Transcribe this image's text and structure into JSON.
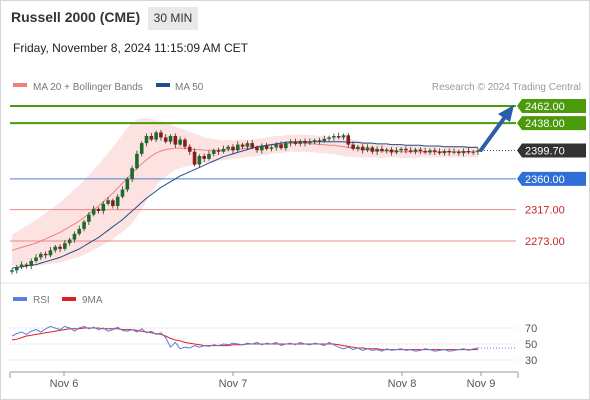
{
  "header": {
    "title": "Russell 2000 (CME)",
    "timeframe": "30 MIN",
    "datetime": "Friday, November 8, 2024 11:15:09 AM CET"
  },
  "legend": {
    "ma20": "MA 20 + Bollinger Bands",
    "ma50": "MA 50",
    "credit": "Research © 2024 Trading Central",
    "ma20_color": "#f08080",
    "ma50_color": "#1f4e8c"
  },
  "levels": [
    {
      "value": 2462.0,
      "label": "2462.00",
      "kind": "resistance",
      "color": "#4a9a0c"
    },
    {
      "value": 2438.0,
      "label": "2438.00",
      "kind": "resistance",
      "color": "#4a9a0c"
    },
    {
      "value": 2399.7,
      "label": "2399.70",
      "kind": "last",
      "color": "#333333"
    },
    {
      "value": 2360.0,
      "label": "2360.00",
      "kind": "pivot",
      "color": "#2f6fd6"
    },
    {
      "value": 2317.0,
      "label": "2317.00",
      "kind": "support",
      "color": "#cc2222"
    },
    {
      "value": 2273.0,
      "label": "2273.00",
      "kind": "support",
      "color": "#cc2222"
    }
  ],
  "rsi_legend": {
    "rsi": "RSI",
    "ma": "9MA",
    "rsi_color": "#5b7fe0",
    "ma_color": "#e02020"
  },
  "rsi_ticks": [
    "70",
    "50",
    "30"
  ],
  "x_labels": [
    "Nov 6",
    "Nov 7",
    "Nov 8",
    "Nov 9"
  ],
  "chart_data": {
    "type": "candlestick",
    "y_range": [
      2245,
      2480
    ],
    "close": [
      2232,
      2236,
      2240,
      2238,
      2245,
      2250,
      2255,
      2253,
      2260,
      2265,
      2262,
      2270,
      2275,
      2283,
      2290,
      2300,
      2310,
      2318,
      2315,
      2325,
      2330,
      2322,
      2335,
      2345,
      2360,
      2375,
      2395,
      2410,
      2420,
      2415,
      2425,
      2418,
      2412,
      2420,
      2408,
      2415,
      2405,
      2398,
      2380,
      2392,
      2388,
      2395,
      2400,
      2398,
      2402,
      2405,
      2400,
      2408,
      2405,
      2410,
      2404,
      2400,
      2406,
      2402,
      2404,
      2408,
      2403,
      2410,
      2412,
      2409,
      2413,
      2410,
      2412,
      2414,
      2413,
      2416,
      2418,
      2420,
      2418,
      2421,
      2408,
      2402,
      2405,
      2400,
      2404,
      2398,
      2402,
      2399,
      2401,
      2397,
      2400,
      2402,
      2400,
      2398,
      2401,
      2399,
      2397,
      2400,
      2398,
      2396,
      2399,
      2397,
      2398,
      2396,
      2399,
      2397,
      2398,
      2399.7
    ],
    "ma20": [
      2260,
      2262,
      2264,
      2266,
      2268,
      2270,
      2273,
      2276,
      2279,
      2282,
      2285,
      2289,
      2293,
      2297,
      2301,
      2306,
      2311,
      2317,
      2322,
      2328,
      2334,
      2340,
      2347,
      2354,
      2361,
      2368,
      2375,
      2381,
      2387,
      2392,
      2396,
      2399,
      2401,
      2402,
      2403,
      2403,
      2403,
      2402,
      2401,
      2401,
      2400,
      2400,
      2400,
      2400,
      2400,
      2401,
      2401,
      2402,
      2402,
      2403,
      2403,
      2404,
      2405,
      2406,
      2407,
      2408,
      2408,
      2409,
      2410,
      2410,
      2410,
      2410,
      2409,
      2409,
      2408,
      2408,
      2407,
      2407,
      2406,
      2405,
      2404,
      2403,
      2402,
      2401,
      2401,
      2400,
      2400,
      2399,
      2399,
      2399,
      2399,
      2398,
      2398,
      2398,
      2398,
      2398,
      2398,
      2398,
      2398,
      2398,
      2398,
      2398,
      2398,
      2398,
      2398,
      2398,
      2398,
      2398
    ],
    "ma50": [
      2235,
      2236,
      2237,
      2238,
      2239,
      2240,
      2242,
      2244,
      2246,
      2248,
      2250,
      2253,
      2256,
      2259,
      2262,
      2266,
      2270,
      2274,
      2278,
      2283,
      2288,
      2293,
      2298,
      2303,
      2309,
      2315,
      2321,
      2327,
      2333,
      2338,
      2343,
      2348,
      2352,
      2356,
      2360,
      2364,
      2367,
      2370,
      2373,
      2376,
      2379,
      2382,
      2385,
      2388,
      2391,
      2393,
      2395,
      2397,
      2399,
      2401,
      2403,
      2405,
      2406,
      2407,
      2408,
      2409,
      2410,
      2411,
      2412,
      2412,
      2412,
      2412,
      2412,
      2412,
      2412,
      2412,
      2412,
      2412,
      2412,
      2412,
      2411,
      2411,
      2411,
      2410,
      2410,
      2410,
      2409,
      2409,
      2409,
      2408,
      2408,
      2408,
      2407,
      2407,
      2407,
      2407,
      2406,
      2406,
      2406,
      2406,
      2405,
      2405,
      2405,
      2405,
      2405,
      2404,
      2404,
      2404
    ],
    "bb_width": [
      22,
      24,
      26,
      28,
      30,
      32,
      34,
      36,
      38,
      40,
      42,
      44,
      46,
      48,
      50,
      52,
      54,
      56,
      58,
      60,
      62,
      64,
      66,
      68,
      70,
      70,
      68,
      64,
      58,
      52,
      46,
      42,
      38,
      34,
      30,
      28,
      26,
      24,
      22,
      20,
      18,
      17,
      16,
      15,
      14,
      14,
      13,
      13,
      13,
      12,
      12,
      12,
      12,
      12,
      12,
      12,
      12,
      12,
      12,
      12,
      12,
      12,
      12,
      12,
      12,
      12,
      12,
      12,
      13,
      13,
      13,
      12,
      12,
      11,
      11,
      10,
      10,
      10,
      9,
      9,
      9,
      9,
      9,
      9,
      9,
      8,
      8,
      8,
      8,
      8,
      8,
      8,
      8,
      8,
      8,
      8,
      8,
      8
    ],
    "rsi": [
      60,
      63,
      65,
      62,
      66,
      68,
      65,
      69,
      72,
      70,
      68,
      72,
      70,
      66,
      70,
      72,
      69,
      71,
      68,
      70,
      66,
      68,
      71,
      67,
      66,
      68,
      65,
      69,
      64,
      66,
      62,
      64,
      58,
      46,
      52,
      44,
      46,
      45,
      48,
      46,
      48,
      47,
      49,
      48,
      50,
      49,
      51,
      50,
      49,
      51,
      50,
      52,
      49,
      51,
      50,
      52,
      48,
      50,
      51,
      49,
      52,
      50,
      49,
      51,
      50,
      48,
      52,
      49,
      46,
      44,
      46,
      43,
      45,
      42,
      44,
      42,
      43,
      41,
      44,
      42,
      43,
      44,
      42,
      43,
      41,
      42,
      44,
      43,
      41,
      42,
      43,
      41,
      42,
      43,
      44,
      42,
      44,
      45
    ],
    "rsi_ma": [
      55,
      56,
      58,
      60,
      61,
      62,
      63,
      64,
      65,
      66,
      67,
      68,
      69,
      69,
      69,
      70,
      70,
      70,
      70,
      69,
      69,
      69,
      69,
      68,
      68,
      68,
      67,
      66,
      65,
      64,
      63,
      62,
      60,
      57,
      55,
      54,
      52,
      51,
      50,
      49,
      48,
      48,
      48,
      48,
      48,
      48,
      49,
      49,
      49,
      50,
      50,
      50,
      50,
      50,
      50,
      50,
      50,
      50,
      50,
      50,
      50,
      50,
      50,
      50,
      50,
      50,
      50,
      50,
      49,
      48,
      47,
      46,
      45,
      45,
      44,
      44,
      44,
      43,
      43,
      43,
      43,
      43,
      43,
      43,
      43,
      43,
      43,
      43,
      43,
      43,
      43,
      43,
      43,
      43,
      43,
      43,
      43,
      43
    ],
    "x_labels": [
      "Nov 6",
      "Nov 7",
      "Nov 8",
      "Nov 9"
    ]
  }
}
